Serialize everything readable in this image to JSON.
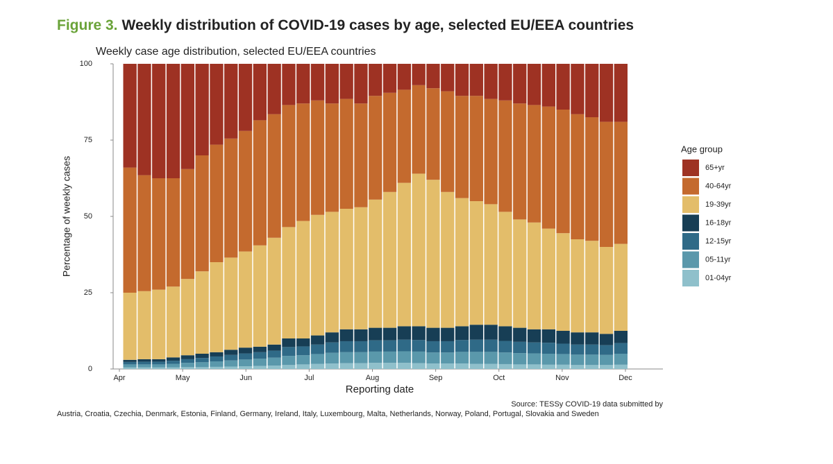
{
  "figure": {
    "label": "Figure 3.",
    "title": "Weekly distribution of COVID-19 cases by age, selected EU/EEA countries"
  },
  "chart_data": {
    "type": "stacked_bar",
    "title": "Weekly case age distribution, selected EU/EEA countries",
    "y_label": "Percentage of weekly cases",
    "x_label": "Reporting date",
    "legend_title": "Age group",
    "legend_position": "right",
    "grid": false,
    "categories": [
      null,
      null,
      null,
      null,
      null,
      null,
      null,
      null,
      null,
      null,
      null,
      null,
      null,
      null,
      null,
      null,
      null,
      null,
      null,
      null,
      null,
      null,
      null,
      null,
      null,
      null,
      null,
      null,
      null,
      null,
      null,
      null,
      null,
      null,
      null
    ],
    "xticks": [
      "Apr",
      "May",
      "Jun",
      "Jul",
      "Aug",
      "Sep",
      "Oct",
      "Nov",
      "Dec"
    ],
    "ylim": [
      0,
      100
    ],
    "yticks": [
      0,
      25,
      50,
      75,
      100
    ],
    "series": [
      {
        "name": "01-04yr",
        "color": "#8fc0cb",
        "values": [
          0.5,
          0.5,
          0.5,
          0.5,
          0.6,
          0.6,
          0.7,
          0.8,
          0.9,
          1,
          1.1,
          1.3,
          1.5,
          1.7,
          1.8,
          1.9,
          1.9,
          2,
          2,
          2,
          1.9,
          1.8,
          1.8,
          1.8,
          1.7,
          1.7,
          1.6,
          1.5,
          1.5,
          1.4,
          1.4,
          1.3,
          1.3,
          1.3,
          1.4
        ]
      },
      {
        "name": "05-11yr",
        "color": "#5a98ab",
        "values": [
          1,
          1,
          1,
          1.2,
          1.4,
          1.6,
          1.8,
          2,
          2.2,
          2.4,
          2.6,
          3,
          3,
          3.2,
          3.5,
          3.6,
          3.6,
          3.7,
          3.7,
          3.8,
          3.8,
          3.6,
          3.6,
          3.8,
          3.9,
          3.9,
          3.8,
          3.7,
          3.6,
          3.6,
          3.5,
          3.4,
          3.4,
          3.3,
          3.6
        ]
      },
      {
        "name": "12-15yr",
        "color": "#2f6a87",
        "values": [
          0.8,
          0.9,
          0.9,
          1,
          1.2,
          1.4,
          1.6,
          1.8,
          2,
          2.1,
          2.3,
          2.9,
          2.9,
          3.1,
          3.4,
          3.6,
          3.6,
          3.7,
          3.7,
          3.8,
          3.8,
          3.7,
          3.7,
          3.9,
          4,
          4,
          3.8,
          3.7,
          3.6,
          3.6,
          3.4,
          3.3,
          3.3,
          3.2,
          3.5
        ]
      },
      {
        "name": "16-18yr",
        "color": "#173e55",
        "values": [
          0.7,
          0.8,
          0.8,
          1.1,
          1.3,
          1.4,
          1.4,
          1.7,
          1.9,
          1.8,
          2,
          2.8,
          2.6,
          3,
          3.3,
          3.9,
          3.9,
          4.1,
          4.1,
          4.4,
          4.5,
          4.4,
          4.4,
          4.5,
          4.9,
          4.9,
          4.8,
          4.6,
          4.3,
          4.4,
          4.2,
          4,
          4,
          3.7,
          4
        ]
      },
      {
        "name": "19-39yr",
        "color": "#e3bd6a",
        "values": [
          22,
          22.3,
          22.8,
          23.2,
          25,
          27,
          29.5,
          30.2,
          31.5,
          33.2,
          35,
          36.5,
          38.5,
          39.5,
          39.5,
          39.5,
          40,
          42,
          44.5,
          47,
          50,
          48.5,
          44.5,
          42,
          40.5,
          39.5,
          37.5,
          35.5,
          35,
          33,
          32,
          30.5,
          30,
          28.5,
          28.5
        ]
      },
      {
        "name": "40-64yr",
        "color": "#c46a2e",
        "values": [
          41,
          38,
          36.5,
          35.5,
          36,
          38,
          38.5,
          39,
          39.5,
          41,
          40.5,
          40,
          38.5,
          37.5,
          35.5,
          36,
          34,
          34,
          32.5,
          30.5,
          29,
          30,
          33,
          33.5,
          34.5,
          34.5,
          36.5,
          38,
          38.5,
          40,
          40.5,
          41,
          40.5,
          41,
          40
        ]
      },
      {
        "name": "65+yr",
        "color": "#9e3223",
        "values": [
          34,
          36.5,
          37.5,
          37.5,
          34.5,
          30,
          26.5,
          24.5,
          22,
          18.5,
          16.5,
          13.5,
          13,
          12,
          13,
          11.5,
          13,
          10.5,
          9.5,
          8.5,
          7,
          8,
          9,
          10.5,
          10.5,
          11.5,
          12,
          13,
          13.5,
          14,
          15,
          16.5,
          17.5,
          19,
          19
        ]
      }
    ],
    "source": [
      "Source: TESSy COVID-19 data submitted by",
      "Austria, Croatia, Czechia, Denmark, Estonia, Finland, Germany, Ireland, Italy, Luxembourg, Malta, Netherlands, Norway, Poland, Portugal, Slovakia and Sweden"
    ]
  }
}
